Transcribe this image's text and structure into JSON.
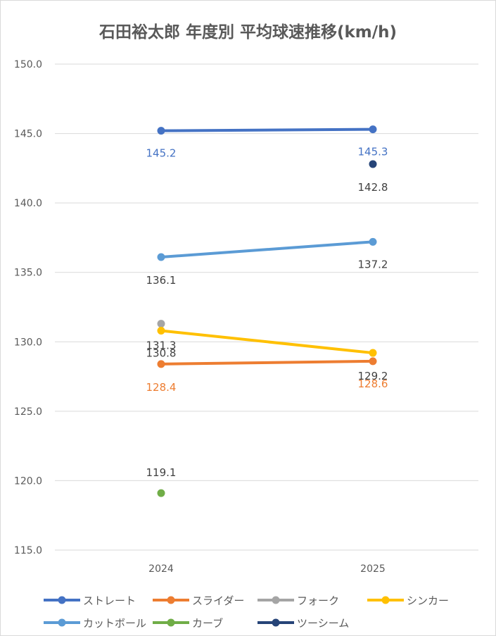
{
  "chart_data": {
    "type": "line",
    "title": "石田裕太郎 年度別 平均球速推移(km/h)",
    "categories": [
      "2024",
      "2025"
    ],
    "ylim": [
      115,
      150
    ],
    "yticks": [
      "115.0",
      "120.0",
      "125.0",
      "130.0",
      "135.0",
      "140.0",
      "145.0",
      "150.0"
    ],
    "grid": true,
    "legend_position": "bottom",
    "series": [
      {
        "name": "ストレート",
        "color": "#4472c4",
        "values": [
          145.2,
          145.3
        ],
        "labels": [
          "145.2",
          "145.3"
        ],
        "label_color": "#4472c4"
      },
      {
        "name": "スライダー",
        "color": "#ed7d31",
        "values": [
          128.4,
          128.6
        ],
        "labels": [
          "128.4",
          "128.6"
        ],
        "label_color": "#ed7d31"
      },
      {
        "name": "フォーク",
        "color": "#a5a5a5",
        "values": [
          131.3,
          null
        ],
        "labels": [
          "131.3",
          null
        ],
        "label_color": "#404040"
      },
      {
        "name": "シンカー",
        "color": "#ffc000",
        "values": [
          130.8,
          129.2
        ],
        "labels": [
          "130.8",
          "129.2"
        ],
        "label_color": "#404040"
      },
      {
        "name": "カットボール",
        "color": "#5b9bd5",
        "values": [
          136.1,
          137.2
        ],
        "labels": [
          "136.1",
          "137.2"
        ],
        "label_color": "#404040"
      },
      {
        "name": "カーブ",
        "color": "#70ad47",
        "values": [
          119.1,
          null
        ],
        "labels": [
          "119.1",
          null
        ],
        "label_color": "#404040"
      },
      {
        "name": "ツーシーム",
        "color": "#264478",
        "values": [
          null,
          142.8
        ],
        "labels": [
          null,
          "142.8"
        ],
        "label_color": "#404040"
      }
    ]
  }
}
